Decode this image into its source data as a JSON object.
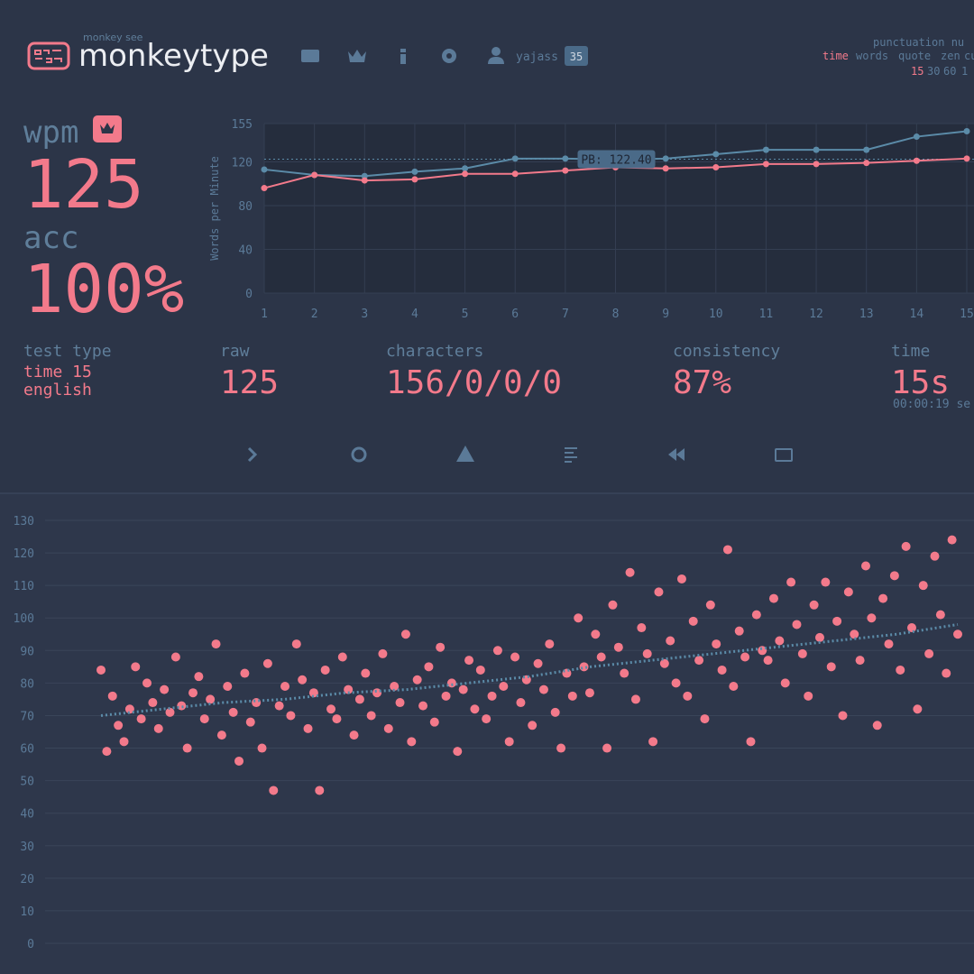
{
  "header": {
    "tagline": "monkey see",
    "brand": "monkeytype",
    "username": "yajass",
    "level": 35
  },
  "config": {
    "row1": "punctuation nu",
    "modes": [
      "time",
      "words",
      "quote",
      "zen",
      "cu"
    ],
    "durations": [
      15,
      30,
      60,
      1
    ]
  },
  "result": {
    "wpm_label": "wpm",
    "wpm": 125,
    "acc_label": "acc",
    "acc": "100%",
    "test_type_label": "test type",
    "test_type": "time 15",
    "language": "english",
    "raw_label": "raw",
    "raw": 125,
    "characters_label": "characters",
    "characters": "156/0/0/0",
    "consistency_label": "consistency",
    "consistency": "87%",
    "time_label": "time",
    "time": "15s",
    "time_detail": "00:00:19 se"
  },
  "chart_data": [
    {
      "type": "line",
      "y_label": "Words per Minute",
      "x": [
        1,
        2,
        3,
        4,
        5,
        6,
        7,
        8,
        9,
        10,
        11,
        12,
        13,
        14,
        15
      ],
      "xlim": [
        1,
        15
      ],
      "xticks": [
        1,
        2,
        3,
        4,
        5,
        6,
        7,
        8,
        9,
        10,
        11,
        12,
        13,
        14,
        15
      ],
      "ylim": [
        0,
        155
      ],
      "yticks": [
        0,
        40,
        80,
        120,
        155
      ],
      "grid": true,
      "series": [
        {
          "color": "#5b8ba8",
          "values": [
            113,
            108,
            107,
            111,
            114,
            123,
            123,
            122,
            123,
            127,
            131,
            131,
            131,
            143,
            148
          ]
        },
        {
          "color": "#f37a8b",
          "values": [
            96,
            108,
            103,
            104,
            109,
            109,
            112,
            115,
            114,
            115,
            118,
            118,
            119,
            121,
            123
          ]
        }
      ],
      "pb": {
        "value": 122.4,
        "label": "PB: 122.40"
      }
    },
    {
      "type": "scatter",
      "color": "#f37a8b",
      "values": [
        84,
        59,
        76,
        67,
        62,
        72,
        85,
        69,
        80,
        74,
        66,
        78,
        71,
        88,
        73,
        60,
        77,
        82,
        69,
        75,
        92,
        64,
        79,
        71,
        56,
        83,
        68,
        74,
        60,
        86,
        47,
        73,
        79,
        70,
        92,
        81,
        66,
        77,
        47,
        84,
        72,
        69,
        88,
        78,
        64,
        75,
        83,
        70,
        77,
        89,
        66,
        79,
        74,
        95,
        62,
        81,
        73,
        85,
        68,
        91,
        76,
        80,
        59,
        78,
        87,
        72,
        84,
        69,
        76,
        90,
        79,
        62,
        88,
        74,
        81,
        67,
        86,
        78,
        92,
        71,
        60,
        83,
        76,
        100,
        85,
        77,
        95,
        88,
        60,
        104,
        91,
        83,
        114,
        75,
        97,
        89,
        62,
        108,
        86,
        93,
        80,
        112,
        76,
        99,
        87,
        69,
        104,
        92,
        84,
        121,
        79,
        96,
        88,
        62,
        101,
        90,
        87,
        106,
        93,
        80,
        111,
        98,
        89,
        76,
        104,
        94,
        111,
        85,
        99,
        70,
        108,
        95,
        87,
        116,
        100,
        67,
        106,
        92,
        113,
        84,
        122,
        97,
        72,
        110,
        89,
        119,
        101,
        83,
        124,
        95
      ],
      "trend": {
        "color": "#5b8ba8",
        "values": [
          70,
          72,
          74,
          75,
          77,
          78,
          80,
          82,
          85,
          87,
          89,
          91,
          93,
          95,
          98
        ]
      },
      "ylim": [
        0,
        130
      ],
      "yticks": [
        0,
        10,
        20,
        30,
        40,
        50,
        60,
        70,
        80,
        90,
        100,
        110,
        120,
        130
      ],
      "grid": true
    }
  ]
}
